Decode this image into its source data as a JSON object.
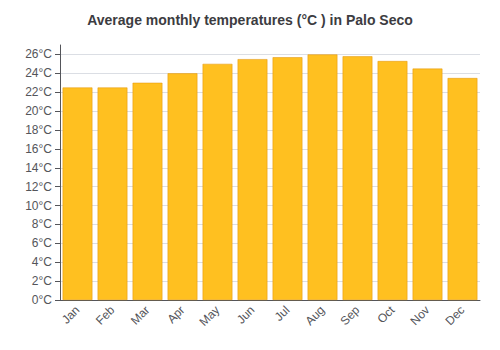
{
  "chart_data": {
    "type": "bar",
    "title": "Average monthly temperatures (°C ) in Palo Seco",
    "categories": [
      "Jan",
      "Feb",
      "Mar",
      "Apr",
      "May",
      "Jun",
      "Jul",
      "Aug",
      "Sep",
      "Oct",
      "Nov",
      "Dec"
    ],
    "values": [
      22.5,
      22.5,
      23.0,
      24.0,
      25.0,
      25.5,
      25.7,
      26.0,
      25.8,
      25.3,
      24.5,
      23.5
    ],
    "color": "#FFC020",
    "ylim": [
      0,
      27
    ],
    "yticks": [
      {
        "value": 0,
        "label": "0°C"
      },
      {
        "value": 2,
        "label": "2°C"
      },
      {
        "value": 4,
        "label": "4°C"
      },
      {
        "value": 6,
        "label": "6°C"
      },
      {
        "value": 8,
        "label": "8°C"
      },
      {
        "value": 10,
        "label": "10°C"
      },
      {
        "value": 12,
        "label": "12°C"
      },
      {
        "value": 14,
        "label": "14°C"
      },
      {
        "value": 16,
        "label": "16°C"
      },
      {
        "value": 18,
        "label": "18°C"
      },
      {
        "value": 20,
        "label": "20°C"
      },
      {
        "value": 22,
        "label": "22°C"
      },
      {
        "value": 24,
        "label": "24°C"
      },
      {
        "value": 26,
        "label": "26°C"
      }
    ],
    "grid": true
  }
}
